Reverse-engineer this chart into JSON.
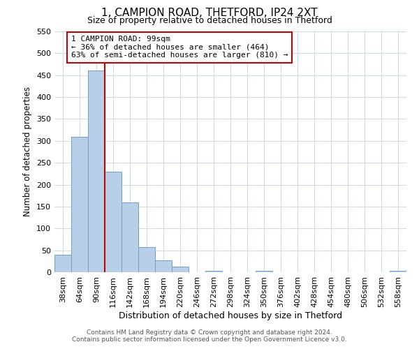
{
  "title_line1": "1, CAMPION ROAD, THETFORD, IP24 2XT",
  "title_line2": "Size of property relative to detached houses in Thetford",
  "xlabel": "Distribution of detached houses by size in Thetford",
  "ylabel": "Number of detached properties",
  "bar_labels": [
    "38sqm",
    "64sqm",
    "90sqm",
    "116sqm",
    "142sqm",
    "168sqm",
    "194sqm",
    "220sqm",
    "246sqm",
    "272sqm",
    "298sqm",
    "324sqm",
    "350sqm",
    "376sqm",
    "402sqm",
    "428sqm",
    "454sqm",
    "480sqm",
    "506sqm",
    "532sqm",
    "558sqm"
  ],
  "bar_values": [
    40,
    310,
    460,
    230,
    160,
    57,
    27,
    12,
    0,
    3,
    0,
    0,
    3,
    0,
    0,
    0,
    0,
    0,
    0,
    0,
    3
  ],
  "bar_color": "#b8cfe8",
  "bar_edge_color": "#6fa0c8",
  "grid_color": "#d0dde8",
  "property_line_color": "#cc0000",
  "ylim": [
    0,
    550
  ],
  "yticks": [
    0,
    50,
    100,
    150,
    200,
    250,
    300,
    350,
    400,
    450,
    500,
    550
  ],
  "annotation_title": "1 CAMPION ROAD: 99sqm",
  "annotation_line1": "← 36% of detached houses are smaller (464)",
  "annotation_line2": "63% of semi-detached houses are larger (810) →",
  "annotation_box_color": "#ffffff",
  "annotation_box_edge_color": "#cc0000",
  "footnote_line1": "Contains HM Land Registry data © Crown copyright and database right 2024.",
  "footnote_line2": "Contains public sector information licensed under the Open Government Licence v3.0.",
  "bg_color": "#ffffff"
}
